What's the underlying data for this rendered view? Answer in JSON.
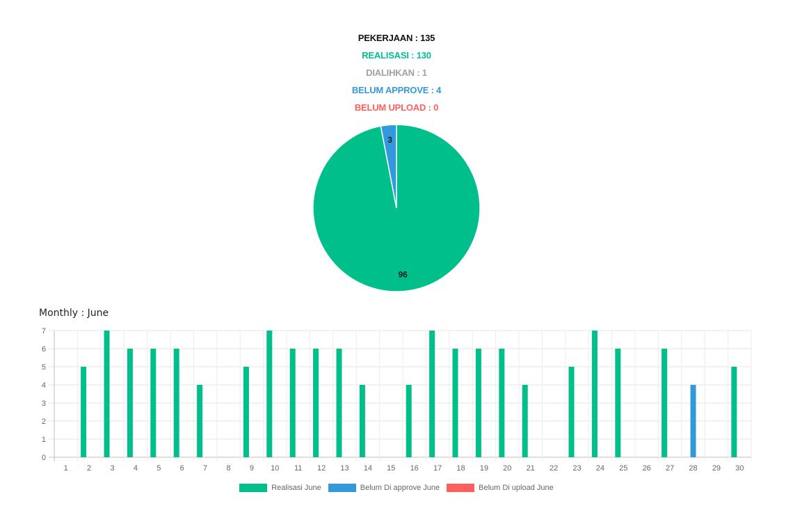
{
  "summary": {
    "pekerjaan": "PEKERJAAN : 135",
    "realisasi": "REALISASI : 130",
    "dialihkan": "DIALIHKAN : 1",
    "belum_approve": "BELUM APPROVE : 4",
    "belum_upload": "BELUM UPLOAD : 0"
  },
  "colors": {
    "realisasi": "#00bf8a",
    "approve": "#3399dd",
    "upload": "#ff5e5e",
    "dialihkan": "#a0a0a0",
    "title": "#111111"
  },
  "chart_data": [
    {
      "type": "pie",
      "values": [
        96,
        3
      ],
      "labels": [
        "96",
        "3"
      ],
      "colors": [
        "#00bf8a",
        "#3399dd"
      ]
    },
    {
      "type": "bar",
      "title": "Monthly : June",
      "categories": [
        "1",
        "2",
        "3",
        "4",
        "5",
        "6",
        "7",
        "8",
        "9",
        "10",
        "11",
        "12",
        "13",
        "14",
        "15",
        "16",
        "17",
        "18",
        "19",
        "20",
        "21",
        "22",
        "23",
        "24",
        "25",
        "26",
        "27",
        "28",
        "29",
        "30"
      ],
      "series": [
        {
          "name": "Realisasi June",
          "color": "#00bf8a",
          "values": [
            0,
            5,
            7,
            6,
            6,
            6,
            4,
            0,
            5,
            7,
            6,
            6,
            6,
            4,
            0,
            4,
            7,
            6,
            6,
            6,
            4,
            0,
            5,
            7,
            6,
            0,
            6,
            0,
            0,
            5
          ]
        },
        {
          "name": "Belum Di approve June",
          "color": "#3399dd",
          "values": [
            0,
            0,
            0,
            0,
            0,
            0,
            0,
            0,
            0,
            0,
            0,
            0,
            0,
            0,
            0,
            0,
            0,
            0,
            0,
            0,
            0,
            0,
            0,
            0,
            0,
            0,
            0,
            4,
            0,
            0
          ]
        },
        {
          "name": "Belum Di upload June",
          "color": "#ff5e5e",
          "values": [
            0,
            0,
            0,
            0,
            0,
            0,
            0,
            0,
            0,
            0,
            0,
            0,
            0,
            0,
            0,
            0,
            0,
            0,
            0,
            0,
            0,
            0,
            0,
            0,
            0,
            0,
            0,
            0,
            0,
            0
          ]
        }
      ],
      "ylim": [
        0,
        7
      ],
      "yticks": [
        "0",
        "1",
        "2",
        "3",
        "4",
        "5",
        "6",
        "7"
      ],
      "grid": true,
      "legend_position": "bottom"
    }
  ]
}
